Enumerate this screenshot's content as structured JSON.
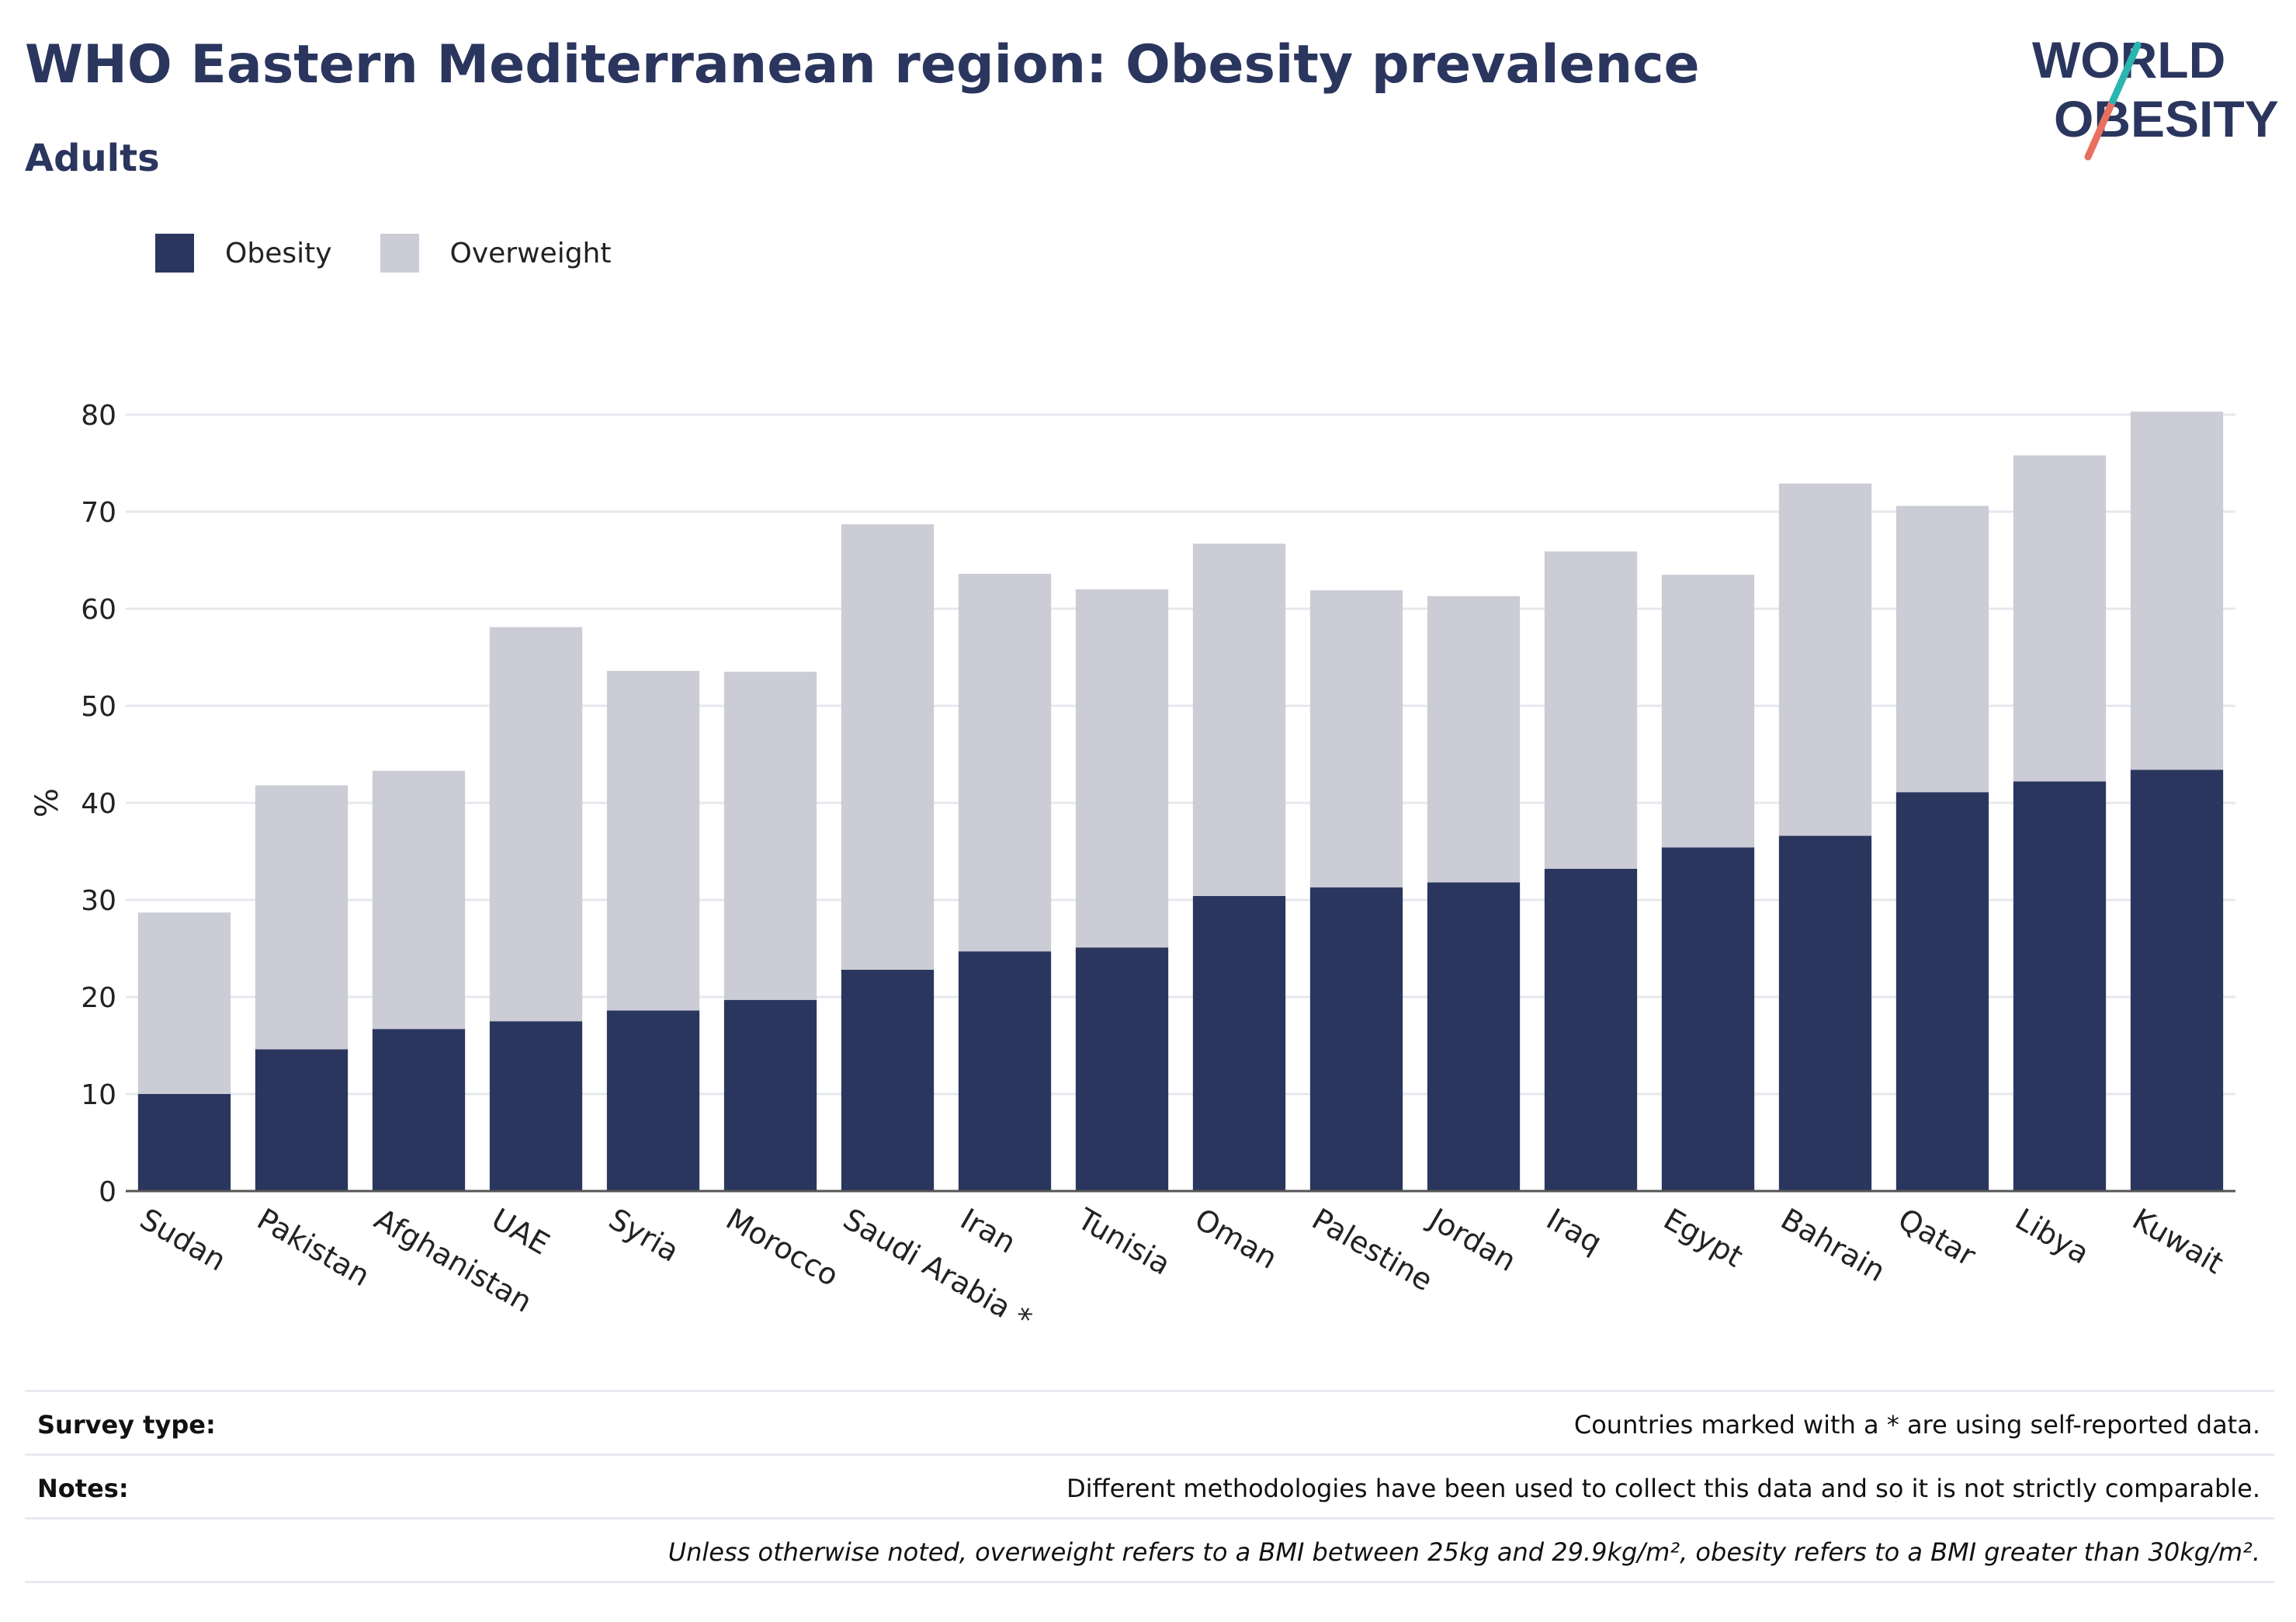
{
  "title": "WHO Eastern Mediterranean region: Obesity prevalence",
  "subtitle": "Adults",
  "logo": {
    "line1": "WORLD",
    "line2": "OBESITY",
    "colors": {
      "text": "#2b365f",
      "slash_top": "#2bb5b0",
      "slash_bottom": "#e8705f"
    }
  },
  "legend": [
    {
      "label": "Obesity",
      "color": "#2b365f"
    },
    {
      "label": "Overweight",
      "color": "#cbccd6"
    }
  ],
  "chart_data": {
    "type": "bar",
    "stacked": true,
    "ylabel": "%",
    "xlabel": "",
    "ylim": [
      0,
      80
    ],
    "yticks": [
      0,
      10,
      20,
      30,
      40,
      50,
      60,
      70,
      80
    ],
    "grid": true,
    "legend_position": "top-left",
    "categories": [
      "Sudan",
      "Pakistan",
      "Afghanistan",
      "UAE",
      "Syria",
      "Morocco",
      "Saudi Arabia *",
      "Iran",
      "Tunisia",
      "Oman",
      "Palestine",
      "Jordan",
      "Iraq",
      "Egypt",
      "Bahrain",
      "Qatar",
      "Libya",
      "Kuwait"
    ],
    "series": [
      {
        "name": "Obesity",
        "color": "#2b365f",
        "values": [
          10.0,
          14.6,
          16.7,
          17.5,
          18.6,
          19.7,
          22.8,
          24.7,
          25.1,
          30.4,
          31.3,
          31.8,
          33.2,
          35.4,
          36.6,
          41.1,
          42.2,
          43.4
        ]
      },
      {
        "name": "Overweight",
        "color": "#cbccd6",
        "values": [
          18.7,
          27.2,
          26.6,
          40.6,
          35.0,
          33.8,
          45.9,
          38.9,
          36.9,
          36.3,
          30.6,
          29.5,
          32.7,
          28.1,
          36.3,
          29.5,
          33.6,
          36.9
        ]
      }
    ]
  },
  "footer": {
    "survey_label": "Survey type:",
    "survey_text": "Countries marked with a * are using self-reported data.",
    "notes_label": "Notes:",
    "notes_text": "Different methodologies have been used to collect this data and so it is not strictly comparable.",
    "definition_text": "Unless otherwise noted, overweight refers to a BMI between 25kg and 29.9kg/m², obesity refers to a BMI greater than 30kg/m²."
  }
}
